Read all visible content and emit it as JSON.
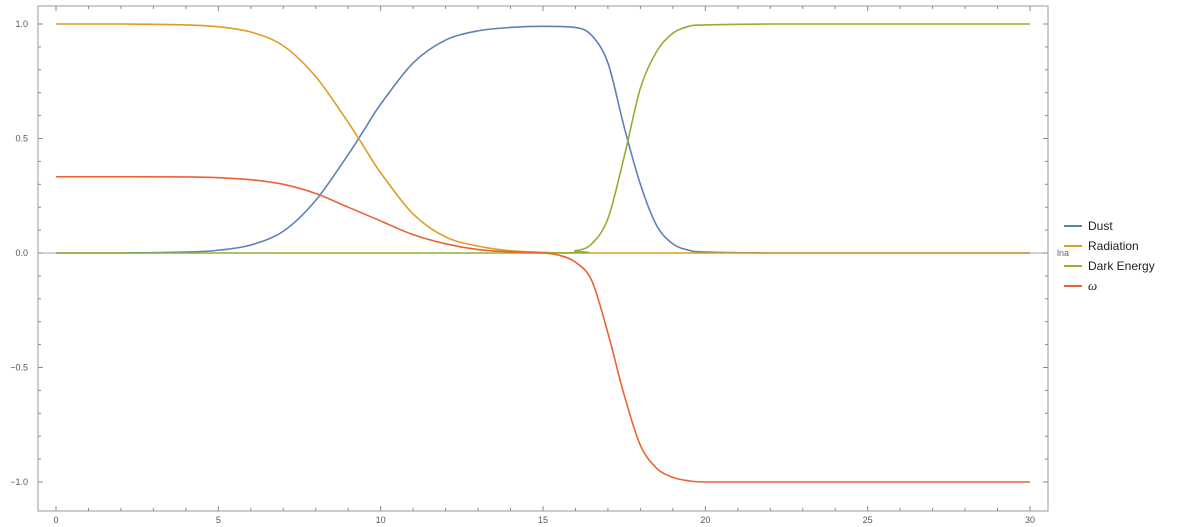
{
  "chart_data": {
    "type": "line",
    "xlabel": "lna",
    "ylabel": "",
    "xlim": [
      0,
      30
    ],
    "ylim": [
      -1.0,
      1.0
    ],
    "x_ticks": [
      0,
      5,
      10,
      15,
      20,
      25,
      30
    ],
    "x_tick_labels": [
      "0",
      "5",
      "10",
      "15",
      "20",
      "25",
      "30"
    ],
    "y_ticks": [
      -1.0,
      -0.5,
      0.0,
      0.5,
      1.0
    ],
    "y_tick_labels": [
      "-1.0",
      "-0.5",
      "0.0",
      "0.5",
      "1.0"
    ],
    "grid": false,
    "legend_position": "right",
    "series": [
      {
        "name": "Dust",
        "color": "#5e81b5",
        "x": [
          0,
          2,
          4,
          5,
          6,
          7,
          8,
          9,
          9.5,
          10,
          11,
          12,
          13,
          14,
          15,
          16,
          16.5,
          17,
          17.5,
          18,
          18.5,
          19,
          19.5,
          20,
          22,
          25,
          30
        ],
        "y": [
          0.0,
          0.0,
          0.004,
          0.012,
          0.035,
          0.095,
          0.23,
          0.43,
          0.54,
          0.65,
          0.83,
          0.93,
          0.97,
          0.985,
          0.99,
          0.985,
          0.95,
          0.83,
          0.55,
          0.3,
          0.12,
          0.04,
          0.012,
          0.004,
          0.0,
          0.0,
          0.0
        ]
      },
      {
        "name": "Radiation",
        "color": "#e19c24",
        "x": [
          0,
          2,
          4,
          5,
          6,
          7,
          8,
          9,
          9.5,
          10,
          11,
          12,
          13,
          14,
          15,
          16,
          20,
          30
        ],
        "y": [
          1.0,
          1.0,
          0.996,
          0.988,
          0.965,
          0.905,
          0.77,
          0.57,
          0.46,
          0.35,
          0.17,
          0.07,
          0.03,
          0.01,
          0.003,
          0.0,
          0.0,
          0.0
        ]
      },
      {
        "name": "Dark Energy",
        "color": "#8fb032",
        "x": [
          0,
          15,
          16,
          16.5,
          17,
          17.5,
          18,
          18.5,
          19,
          19.5,
          20,
          22,
          25,
          30
        ],
        "y": [
          0.0,
          0.0,
          0.01,
          0.04,
          0.15,
          0.42,
          0.72,
          0.88,
          0.96,
          0.99,
          0.996,
          1.0,
          1.0,
          1.0
        ]
      },
      {
        "name": "ω",
        "color": "#eb6235",
        "x": [
          0,
          2,
          4,
          5,
          6,
          7,
          8,
          9,
          10,
          11,
          12,
          13,
          14,
          15,
          15.5,
          16,
          16.5,
          17,
          17.5,
          18,
          18.5,
          19,
          19.5,
          20,
          22,
          25,
          30
        ],
        "y": [
          0.333,
          0.333,
          0.332,
          0.329,
          0.32,
          0.3,
          0.26,
          0.2,
          0.14,
          0.08,
          0.04,
          0.015,
          0.005,
          0.0,
          -0.01,
          -0.04,
          -0.12,
          -0.35,
          -0.62,
          -0.84,
          -0.94,
          -0.98,
          -0.995,
          -1.0,
          -1.0,
          -1.0,
          -1.0
        ]
      }
    ]
  }
}
